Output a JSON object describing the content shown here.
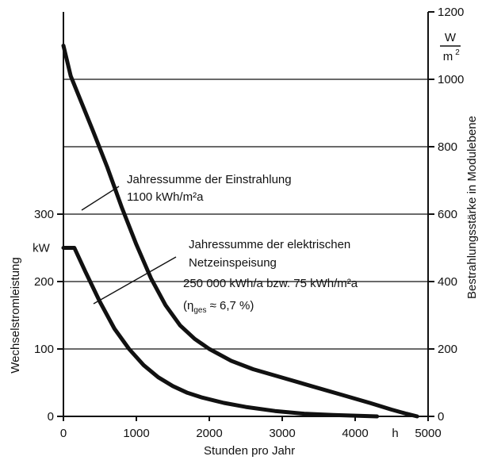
{
  "chart_data": {
    "type": "line",
    "title": "",
    "xlabel": "Stunden pro Jahr",
    "xunit": "h",
    "xlim": [
      0,
      5000
    ],
    "x_ticks": [
      "0",
      "1000",
      "2000",
      "3000",
      "4000",
      "5000"
    ],
    "ylabel_left": "Wechselstromleistung",
    "yunit_left": "kW",
    "ylim_left": [
      0,
      300
    ],
    "y_ticks_left": [
      "0",
      "100",
      "200",
      "300"
    ],
    "ylabel_right": "Bestrahlungsstärke in Modulebene",
    "yunit_right": {
      "numerator": "W",
      "denominator": "m",
      "exponent": "2"
    },
    "ylim_right": [
      0,
      1200
    ],
    "y_ticks_right": [
      "0",
      "200",
      "400",
      "600",
      "800",
      "1000",
      "1200"
    ],
    "grid": "horizontal at right-axis ticks",
    "series": [
      {
        "axis": "right",
        "x": [
          0,
          100,
          250,
          400,
          600,
          800,
          1000,
          1200,
          1400,
          1600,
          1800,
          2000,
          2300,
          2600,
          3000,
          3400,
          3800,
          4200,
          4500,
          4700,
          4850
        ],
        "y": [
          1100,
          1010,
          930,
          850,
          740,
          620,
          510,
          410,
          330,
          270,
          230,
          200,
          165,
          140,
          115,
          90,
          65,
          40,
          20,
          8,
          0
        ]
      },
      {
        "axis": "left",
        "x": [
          0,
          150,
          300,
          500,
          700,
          900,
          1100,
          1300,
          1500,
          1700,
          1900,
          2200,
          2500,
          2900,
          3300,
          3700,
          4000,
          4300
        ],
        "y": [
          250,
          250,
          215,
          170,
          130,
          100,
          76,
          58,
          45,
          35,
          28,
          20,
          14,
          8,
          4,
          2,
          1,
          0
        ]
      }
    ],
    "annotations": [
      {
        "lines": [
          "Jahressumme der Einstrahlung",
          "1100 kWh/m²a"
        ]
      },
      {
        "lines": [
          "Jahressumme der elektrischen",
          "Netzeinspeisung",
          "250 000 kWh/a  bzw. 75 kWh/m²a"
        ]
      },
      {
        "eta_symbol": "η",
        "eta_sub": "ges",
        "eta_rest": " ≈ 6,7 %)"
      }
    ]
  }
}
